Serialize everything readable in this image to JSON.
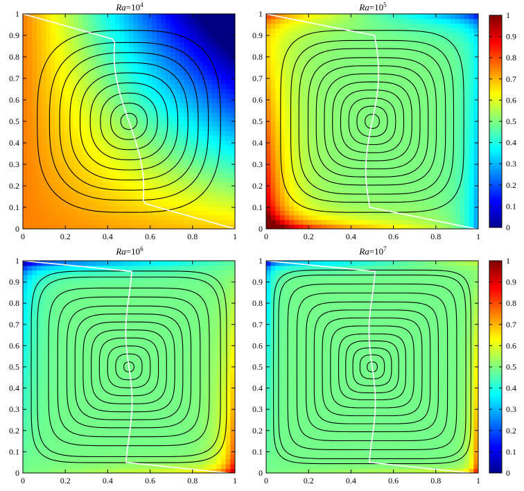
{
  "chart_data": [
    {
      "type": "heatmap",
      "title_var": "Ra",
      "title_eq": "=10",
      "title_exp": "4",
      "ra_exponent": 4,
      "xlim": [
        0,
        1
      ],
      "ylim": [
        0,
        1
      ],
      "xticks": [
        "0",
        "0.2",
        "0.4",
        "0.6",
        "0.8",
        "1"
      ],
      "yticks": [
        "0",
        "0.1",
        "0.2",
        "0.3",
        "0.4",
        "0.5",
        "0.6",
        "0.7",
        "0.8",
        "0.9",
        "1"
      ],
      "streamline_levels": [
        0.08,
        0.18,
        0.28,
        0.38,
        0.48,
        0.58,
        0.68,
        0.78,
        0.9
      ],
      "streamline_center": [
        0.5,
        0.5
      ]
    },
    {
      "type": "heatmap",
      "title_var": "Ra",
      "title_eq": "=10",
      "title_exp": "5",
      "ra_exponent": 5,
      "xlim": [
        0,
        1
      ],
      "ylim": [
        0,
        1
      ],
      "xticks": [
        "0",
        "0.2",
        "0.4",
        "0.6",
        "0.8",
        "1"
      ],
      "yticks": [
        "0",
        "0.1",
        "0.2",
        "0.3",
        "0.4",
        "0.5",
        "0.6",
        "0.7",
        "0.8",
        "0.9",
        "1"
      ],
      "streamline_levels": [
        0.07,
        0.15,
        0.23,
        0.31,
        0.39,
        0.47,
        0.55,
        0.63,
        0.72,
        0.8,
        0.9
      ],
      "streamline_center": [
        0.5,
        0.5
      ]
    },
    {
      "type": "heatmap",
      "title_var": "Ra",
      "title_eq": "=10",
      "title_exp": "6",
      "ra_exponent": 6,
      "xlim": [
        0,
        1
      ],
      "ylim": [
        0,
        1
      ],
      "xticks": [
        "0",
        "0.2",
        "0.4",
        "0.6",
        "0.8",
        "1"
      ],
      "yticks": [
        "0",
        "0.1",
        "0.2",
        "0.3",
        "0.4",
        "0.5",
        "0.6",
        "0.7",
        "0.8",
        "0.9",
        "1"
      ],
      "streamline_levels": [
        0.05,
        0.13,
        0.21,
        0.29,
        0.37,
        0.45,
        0.53,
        0.61,
        0.7,
        0.79,
        0.9,
        0.96
      ],
      "streamline_center": [
        0.5,
        0.5
      ]
    },
    {
      "type": "heatmap",
      "title_var": "Ra",
      "title_eq": "=10",
      "title_exp": "7",
      "ra_exponent": 7,
      "xlim": [
        0,
        1
      ],
      "ylim": [
        0,
        1
      ],
      "xticks": [
        "0",
        "0.2",
        "0.4",
        "0.6",
        "0.8",
        "1"
      ],
      "yticks": [
        "0",
        "0.1",
        "0.2",
        "0.3",
        "0.4",
        "0.5",
        "0.6",
        "0.7",
        "0.8",
        "0.9",
        "1"
      ],
      "streamline_levels": [
        0.05,
        0.12,
        0.19,
        0.26,
        0.33,
        0.41,
        0.49,
        0.57,
        0.65,
        0.74,
        0.83,
        0.92,
        0.97
      ],
      "streamline_center": [
        0.5,
        0.5
      ]
    }
  ],
  "colorbars": [
    {
      "ticks": [
        "0",
        "0.1",
        "0.2",
        "0.3",
        "0.4",
        "0.5",
        "0.6",
        "0.7",
        "0.8",
        "0.9",
        "1"
      ],
      "range": [
        0,
        1
      ],
      "colormap": "jet"
    },
    {
      "ticks": [
        "0",
        "0.1",
        "0.2",
        "0.3",
        "0.4",
        "0.5",
        "0.6",
        "0.7",
        "0.8",
        "0.9",
        "1"
      ],
      "range": [
        0,
        1
      ],
      "colormap": "jet"
    }
  ]
}
